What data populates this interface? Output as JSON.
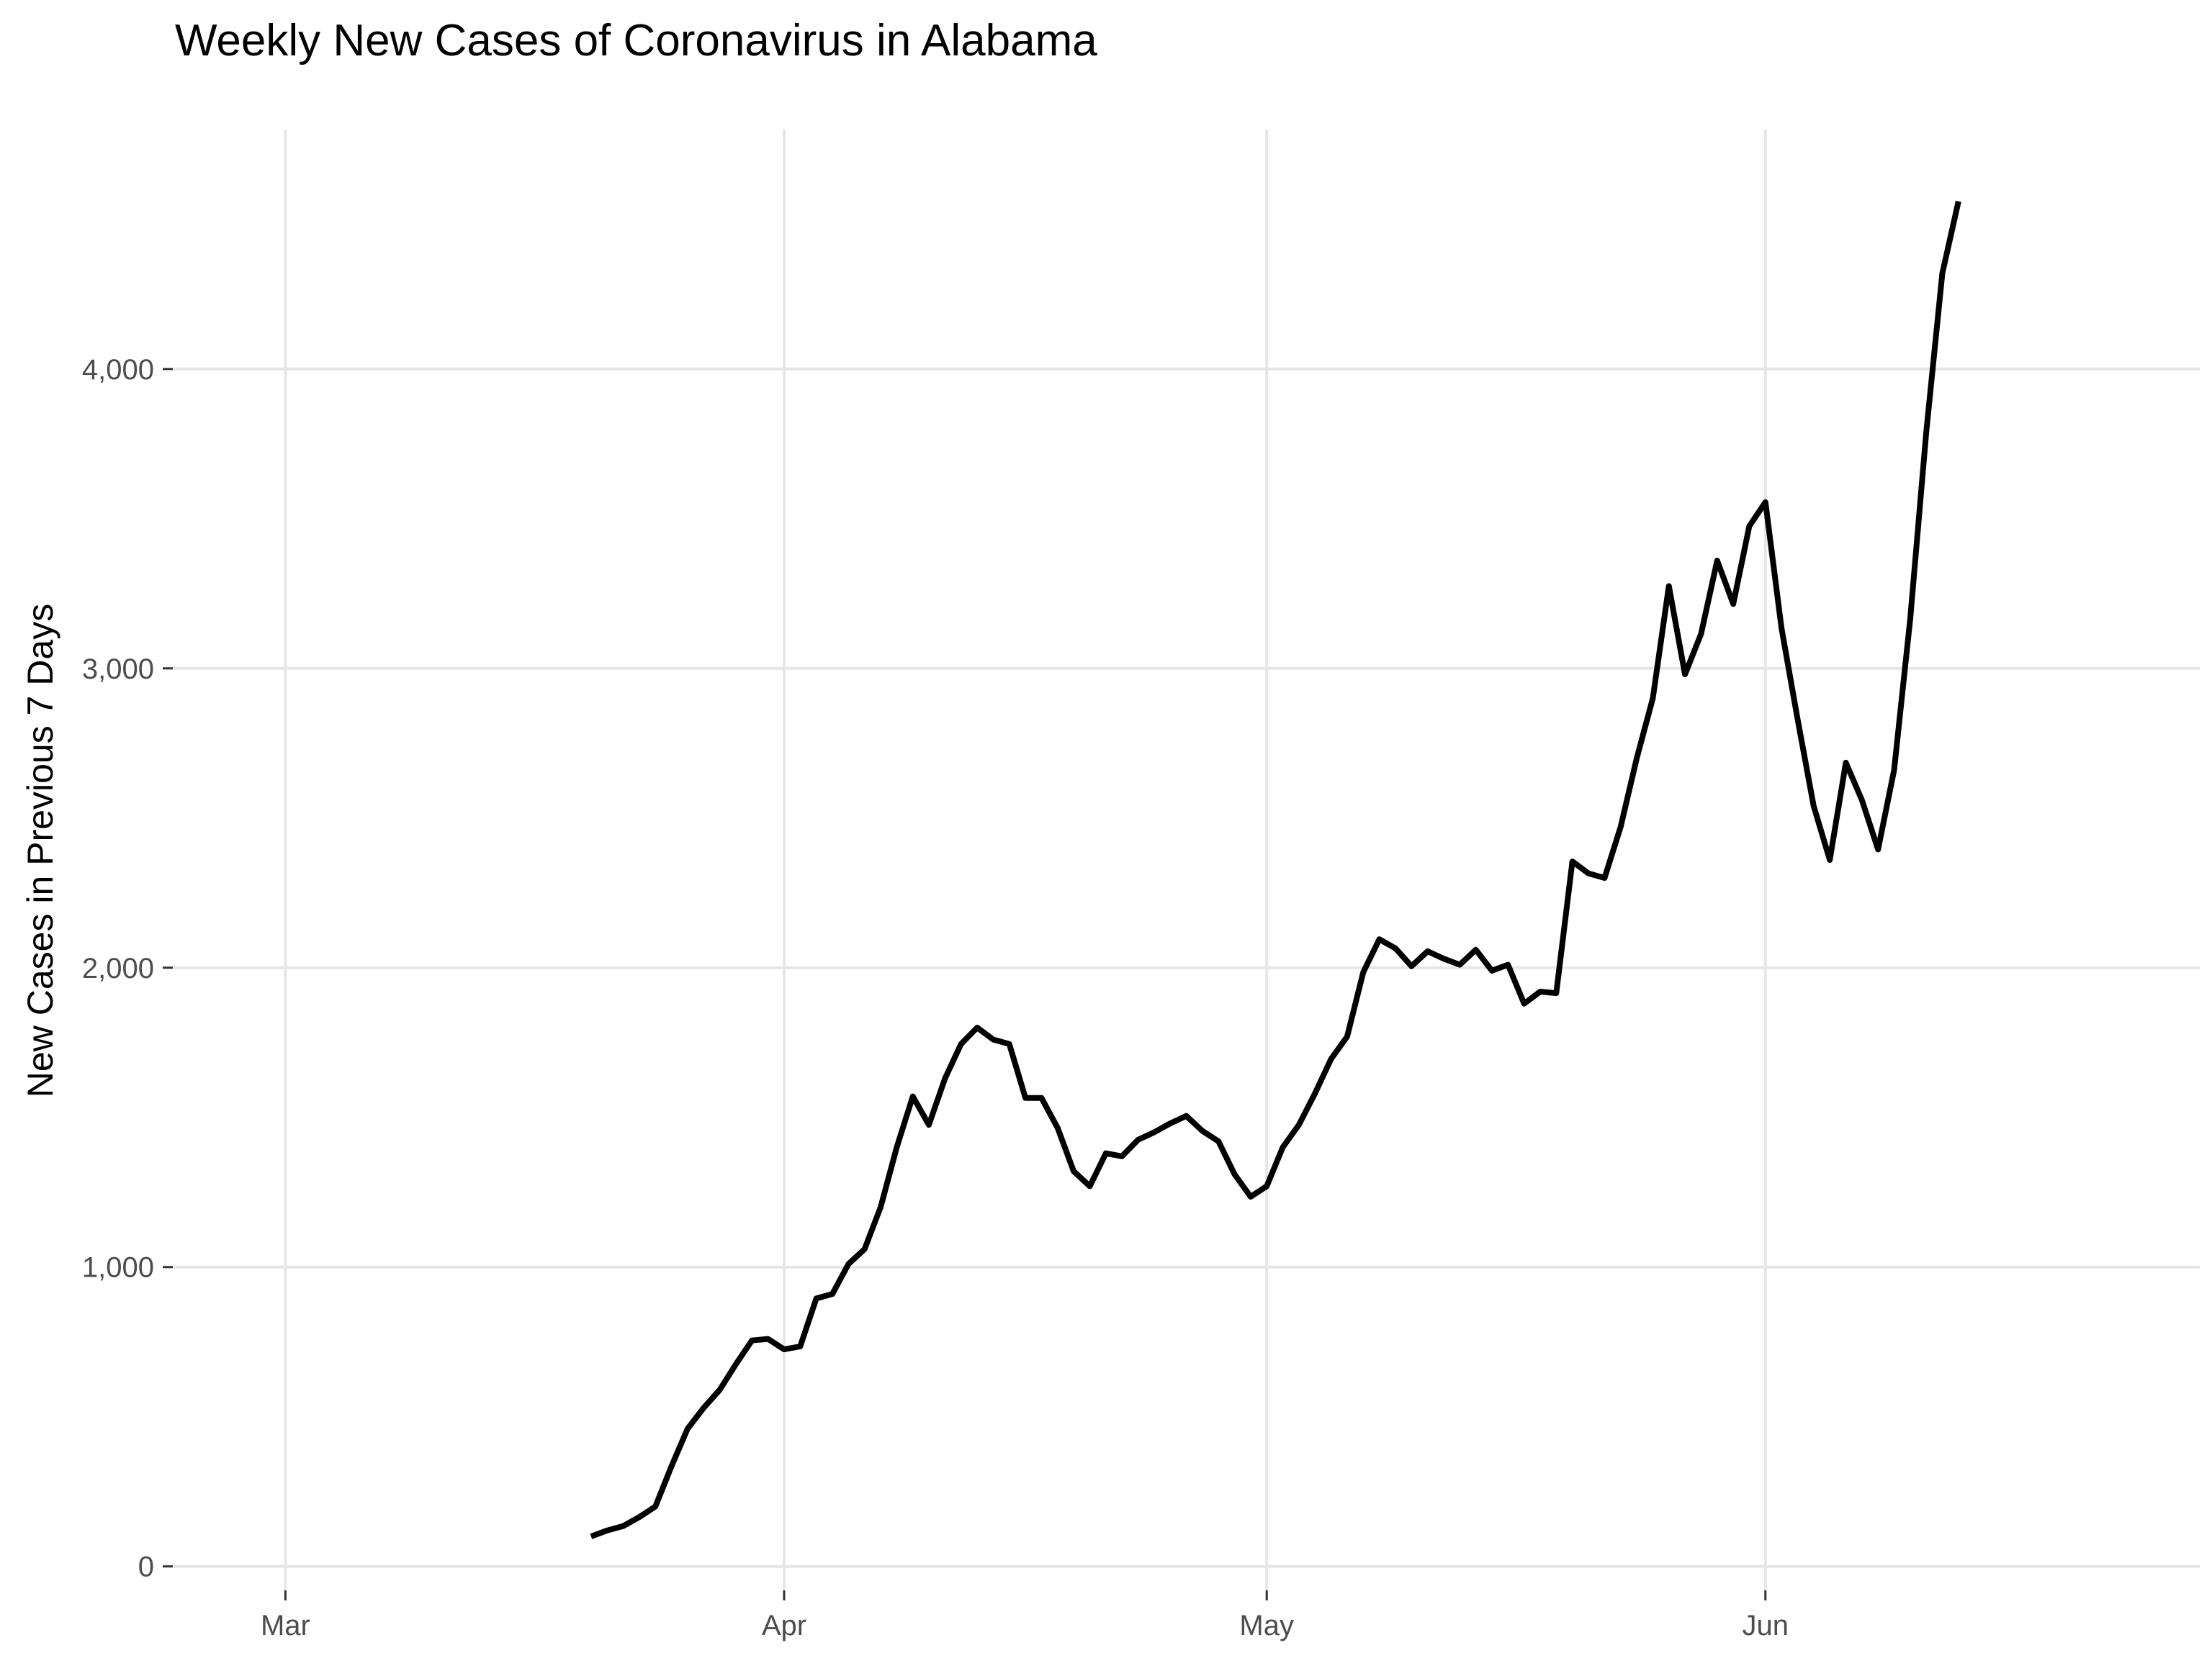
{
  "chart_data": {
    "type": "line",
    "title": "Weekly New Cases of Coronavirus in Alabama",
    "xlabel": "",
    "ylabel": "New Cases in Previous 7 Days",
    "x_axis": {
      "type": "date",
      "range": [
        "2020-02-23",
        "2020-06-28"
      ],
      "ticks": [
        {
          "label": "Mar",
          "date": "2020-03-01"
        },
        {
          "label": "Apr",
          "date": "2020-04-01"
        },
        {
          "label": "May",
          "date": "2020-05-01"
        },
        {
          "label": "Jun",
          "date": "2020-06-01"
        }
      ]
    },
    "y_axis": {
      "range": [
        -80,
        4800
      ],
      "ticks": [
        {
          "label": "0",
          "value": 0
        },
        {
          "label": "1,000",
          "value": 1000
        },
        {
          "label": "2,000",
          "value": 2000
        },
        {
          "label": "3,000",
          "value": 3000
        },
        {
          "label": "4,000",
          "value": 4000
        }
      ]
    },
    "grid": true,
    "legend": "none",
    "series": [
      {
        "color": "#000000",
        "x": [
          "2020-03-20",
          "2020-03-21",
          "2020-03-22",
          "2020-03-23",
          "2020-03-24",
          "2020-03-25",
          "2020-03-26",
          "2020-03-27",
          "2020-03-28",
          "2020-03-29",
          "2020-03-30",
          "2020-03-31",
          "2020-04-01",
          "2020-04-02",
          "2020-04-03",
          "2020-04-04",
          "2020-04-05",
          "2020-04-06",
          "2020-04-07",
          "2020-04-08",
          "2020-04-09",
          "2020-04-10",
          "2020-04-11",
          "2020-04-12",
          "2020-04-13",
          "2020-04-14",
          "2020-04-15",
          "2020-04-16",
          "2020-04-17",
          "2020-04-18",
          "2020-04-19",
          "2020-04-20",
          "2020-04-21",
          "2020-04-22",
          "2020-04-23",
          "2020-04-24",
          "2020-04-25",
          "2020-04-26",
          "2020-04-27",
          "2020-04-28",
          "2020-04-29",
          "2020-04-30",
          "2020-05-01",
          "2020-05-02",
          "2020-05-03",
          "2020-05-04",
          "2020-05-05",
          "2020-05-06",
          "2020-05-07",
          "2020-05-08",
          "2020-05-09",
          "2020-05-10",
          "2020-05-11",
          "2020-05-12",
          "2020-05-13",
          "2020-05-14",
          "2020-05-15",
          "2020-05-16",
          "2020-05-17",
          "2020-05-18",
          "2020-05-19",
          "2020-05-20",
          "2020-05-21",
          "2020-05-22",
          "2020-05-23",
          "2020-05-24",
          "2020-05-25",
          "2020-05-26",
          "2020-05-27",
          "2020-05-28",
          "2020-05-29",
          "2020-05-30",
          "2020-05-31",
          "2020-06-01",
          "2020-06-02",
          "2020-06-03",
          "2020-06-04",
          "2020-06-05",
          "2020-06-06",
          "2020-06-07",
          "2020-06-08",
          "2020-06-09",
          "2020-06-10",
          "2020-06-11",
          "2020-06-12",
          "2020-06-13"
        ],
        "y": [
          100,
          120,
          135,
          165,
          200,
          335,
          460,
          530,
          590,
          675,
          755,
          760,
          725,
          735,
          895,
          910,
          1010,
          1060,
          1200,
          1400,
          1570,
          1475,
          1630,
          1745,
          1800,
          1760,
          1745,
          1565,
          1565,
          1465,
          1320,
          1270,
          1380,
          1370,
          1425,
          1450,
          1480,
          1505,
          1455,
          1420,
          1310,
          1235,
          1270,
          1400,
          1475,
          1580,
          1695,
          1770,
          1985,
          2095,
          2065,
          2005,
          2055,
          2030,
          2010,
          2060,
          1990,
          2010,
          1880,
          1920,
          1915,
          2355,
          2315,
          2300,
          2470,
          2700,
          2900,
          3275,
          2980,
          3115,
          3360,
          3215,
          3475,
          3555,
          3135,
          2830,
          2540,
          2360,
          2685,
          2560,
          2395,
          2660,
          3165,
          3790,
          4320,
          4560
        ]
      }
    ]
  }
}
